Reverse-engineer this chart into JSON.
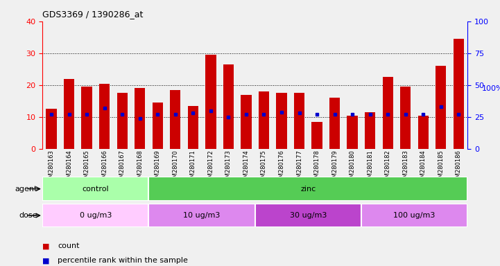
{
  "title": "GDS3369 / 1390286_at",
  "samples": [
    "GSM280163",
    "GSM280164",
    "GSM280165",
    "GSM280166",
    "GSM280167",
    "GSM280168",
    "GSM280169",
    "GSM280170",
    "GSM280171",
    "GSM280172",
    "GSM280173",
    "GSM280174",
    "GSM280175",
    "GSM280176",
    "GSM280177",
    "GSM280178",
    "GSM280179",
    "GSM280180",
    "GSM280181",
    "GSM280182",
    "GSM280183",
    "GSM280184",
    "GSM280185",
    "GSM280186"
  ],
  "count_values": [
    12.5,
    22.0,
    19.5,
    20.5,
    17.5,
    19.0,
    14.5,
    18.5,
    13.5,
    29.5,
    26.5,
    17.0,
    18.0,
    17.5,
    17.5,
    8.5,
    16.0,
    10.5,
    11.5,
    22.5,
    19.5,
    10.5,
    26.0,
    34.5
  ],
  "percentile_values": [
    27,
    27,
    27,
    32,
    27,
    24,
    27,
    27,
    28,
    30,
    25,
    27,
    27,
    29,
    28,
    27,
    27,
    27,
    27,
    27,
    27,
    27,
    33,
    27
  ],
  "bar_color": "#cc0000",
  "pct_color": "#0000cc",
  "ylim_left": [
    0,
    40
  ],
  "ylim_right": [
    0,
    100
  ],
  "yticks_left": [
    0,
    10,
    20,
    30,
    40
  ],
  "yticks_right": [
    0,
    25,
    50,
    75,
    100
  ],
  "agent_groups": [
    {
      "label": "control",
      "start": 0,
      "end": 6,
      "color": "#aaffaa"
    },
    {
      "label": "zinc",
      "start": 6,
      "end": 24,
      "color": "#55cc55"
    }
  ],
  "dose_groups": [
    {
      "label": "0 ug/m3",
      "start": 0,
      "end": 6,
      "color": "#ffccff"
    },
    {
      "label": "10 ug/m3",
      "start": 6,
      "end": 12,
      "color": "#dd88ee"
    },
    {
      "label": "30 ug/m3",
      "start": 12,
      "end": 18,
      "color": "#bb44cc"
    },
    {
      "label": "100 ug/m3",
      "start": 18,
      "end": 24,
      "color": "#dd88ee"
    }
  ],
  "fig_bg": "#f0f0f0",
  "plot_bg": "#ffffff",
  "legend_count_label": "count",
  "legend_pct_label": "percentile rank within the sample"
}
